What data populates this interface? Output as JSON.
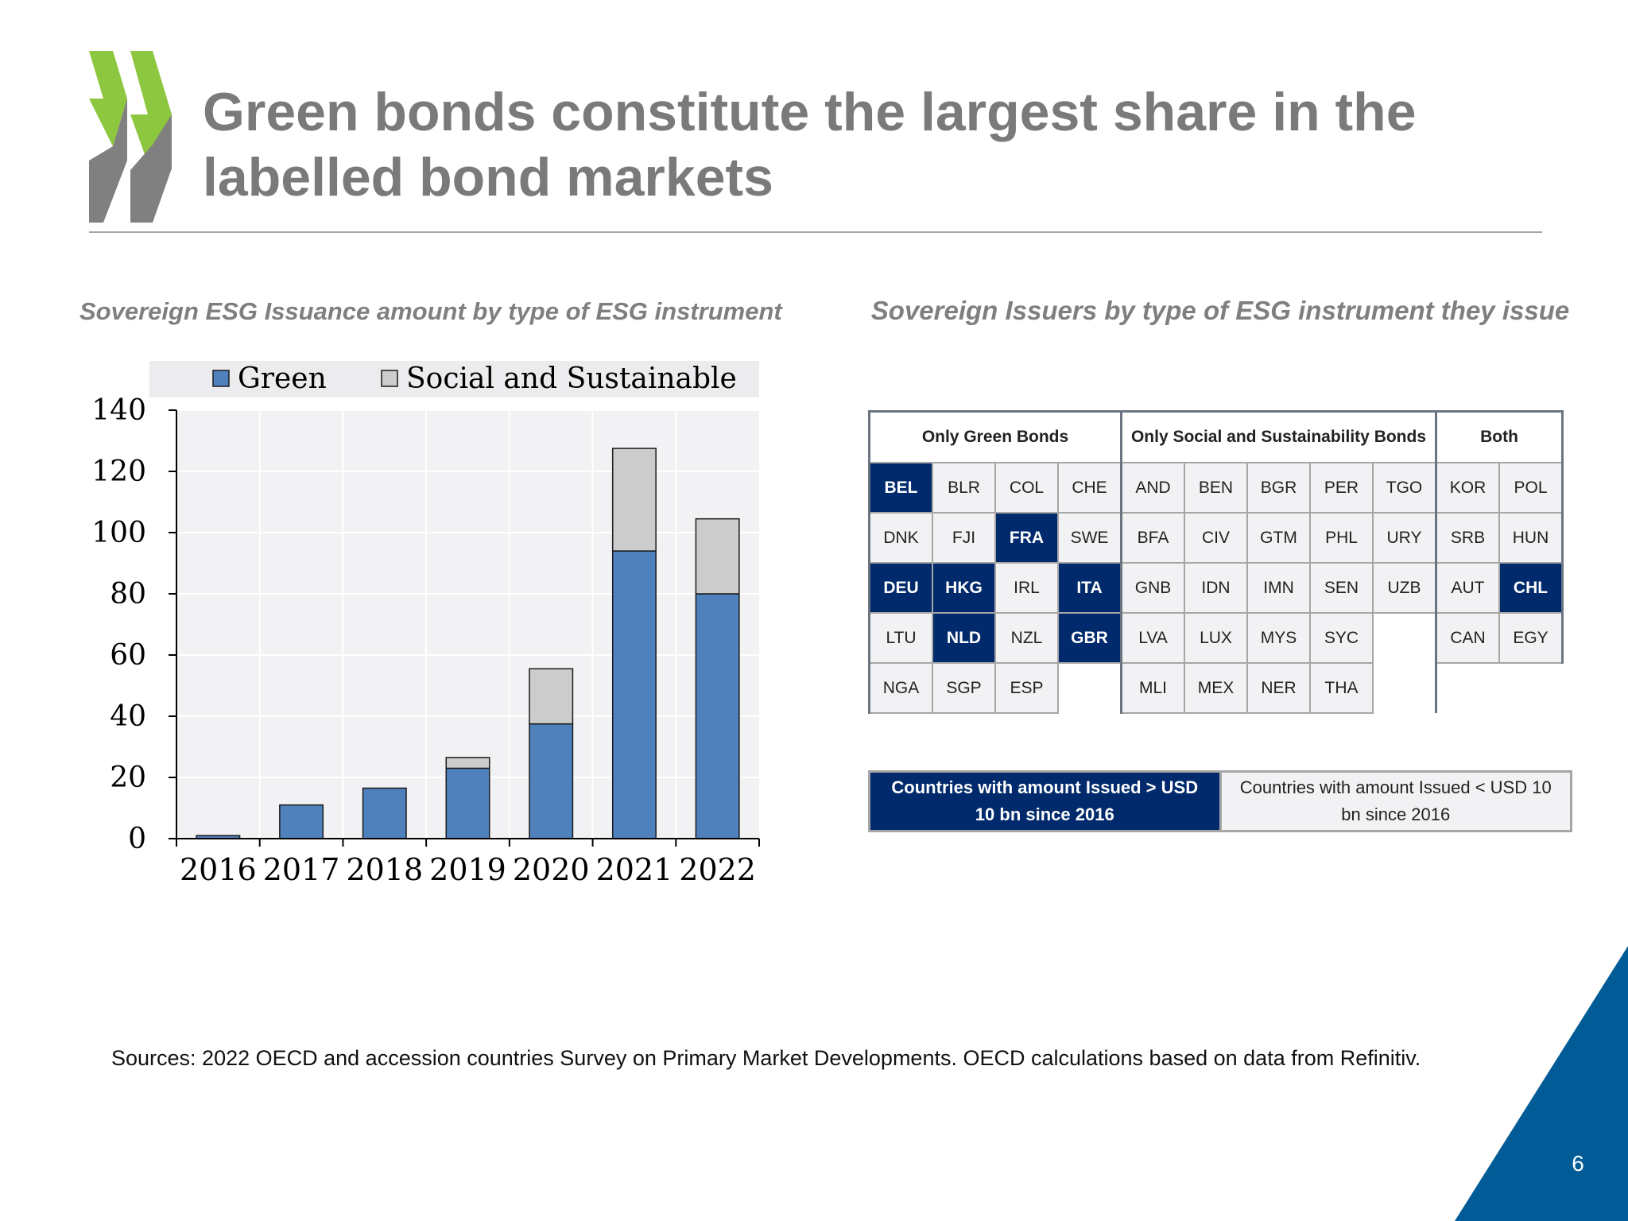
{
  "slide": {
    "title": "Green bonds constitute the largest share in the labelled bond markets",
    "page_number": "6",
    "sources": "Sources: 2022 OECD and accession countries Survey on Primary Market Developments. OECD calculations based on data from Refinitiv.",
    "colors": {
      "title": "#7a7a7a",
      "green_bar": "#4f81bd",
      "social_bar": "#cccccc",
      "navy": "#002a6c",
      "logo_green": "#8dc63f",
      "logo_grey": "#808080",
      "corner_blue": "#005b96"
    }
  },
  "left_panel": {
    "subtitle": "Sovereign ESG Issuance amount by type of ESG instrument"
  },
  "chart_data": {
    "type": "bar",
    "stacked": true,
    "categories": [
      "2016",
      "2017",
      "2018",
      "2019",
      "2020",
      "2021",
      "2022"
    ],
    "series": [
      {
        "name": "Green",
        "values": [
          1,
          11,
          16.5,
          23,
          37.5,
          94,
          80
        ],
        "color": "#4f81bd"
      },
      {
        "name": "Social and Sustainable",
        "values": [
          0,
          0,
          0,
          3.5,
          18,
          33.5,
          24.5
        ],
        "color": "#cccccc"
      }
    ],
    "yticks": [
      0,
      20,
      40,
      60,
      80,
      100,
      120,
      140
    ],
    "ylim": [
      0,
      140
    ],
    "grid": true,
    "legend": "top"
  },
  "right_panel": {
    "subtitle": "Sovereign Issuers by type of ESG instrument they issue",
    "groups": [
      {
        "header": "Only Green Bonds",
        "rows": [
          [
            {
              "code": "BEL",
              "big": true
            },
            {
              "code": "BLR",
              "big": false
            },
            {
              "code": "COL",
              "big": false
            },
            {
              "code": "CHE",
              "big": false
            }
          ],
          [
            {
              "code": "DNK",
              "big": false
            },
            {
              "code": "FJI",
              "big": false
            },
            {
              "code": "FRA",
              "big": true
            },
            {
              "code": "SWE",
              "big": false
            }
          ],
          [
            {
              "code": "DEU",
              "big": true
            },
            {
              "code": "HKG",
              "big": true
            },
            {
              "code": "IRL",
              "big": false
            },
            {
              "code": "ITA",
              "big": true
            }
          ],
          [
            {
              "code": "LTU",
              "big": false
            },
            {
              "code": "NLD",
              "big": true
            },
            {
              "code": "NZL",
              "big": false
            },
            {
              "code": "GBR",
              "big": true
            }
          ],
          [
            {
              "code": "NGA",
              "big": false
            },
            {
              "code": "SGP",
              "big": false
            },
            {
              "code": "ESP",
              "big": false
            },
            null
          ]
        ]
      },
      {
        "header": "Only Social and Sustainability Bonds",
        "rows": [
          [
            {
              "code": "AND",
              "big": false
            },
            {
              "code": "BEN",
              "big": false
            },
            {
              "code": "BGR",
              "big": false
            },
            {
              "code": "PER",
              "big": false
            },
            {
              "code": "TGO",
              "big": false
            }
          ],
          [
            {
              "code": "BFA",
              "big": false
            },
            {
              "code": "CIV",
              "big": false
            },
            {
              "code": "GTM",
              "big": false
            },
            {
              "code": "PHL",
              "big": false
            },
            {
              "code": "URY",
              "big": false
            }
          ],
          [
            {
              "code": "GNB",
              "big": false
            },
            {
              "code": "IDN",
              "big": false
            },
            {
              "code": "IMN",
              "big": false
            },
            {
              "code": "SEN",
              "big": false
            },
            {
              "code": "UZB",
              "big": false
            }
          ],
          [
            {
              "code": "LVA",
              "big": false
            },
            {
              "code": "LUX",
              "big": false
            },
            {
              "code": "MYS",
              "big": false
            },
            {
              "code": "SYC",
              "big": false
            },
            null
          ],
          [
            {
              "code": "MLI",
              "big": false
            },
            {
              "code": "MEX",
              "big": false
            },
            {
              "code": "NER",
              "big": false
            },
            {
              "code": "THA",
              "big": false
            },
            null
          ]
        ]
      },
      {
        "header": "Both",
        "rows": [
          [
            {
              "code": "KOR",
              "big": false
            },
            {
              "code": "POL",
              "big": false
            }
          ],
          [
            {
              "code": "SRB",
              "big": false
            },
            {
              "code": "HUN",
              "big": false
            }
          ],
          [
            {
              "code": "AUT",
              "big": false
            },
            {
              "code": "CHL",
              "big": true
            }
          ],
          [
            {
              "code": "CAN",
              "big": false
            },
            {
              "code": "EGY",
              "big": false
            }
          ],
          [
            null,
            null
          ]
        ]
      }
    ],
    "key": {
      "big_label": "Countries with amount Issued > USD 10 bn since 2016",
      "small_label": "Countries with amount Issued < USD 10 bn since 2016"
    }
  }
}
